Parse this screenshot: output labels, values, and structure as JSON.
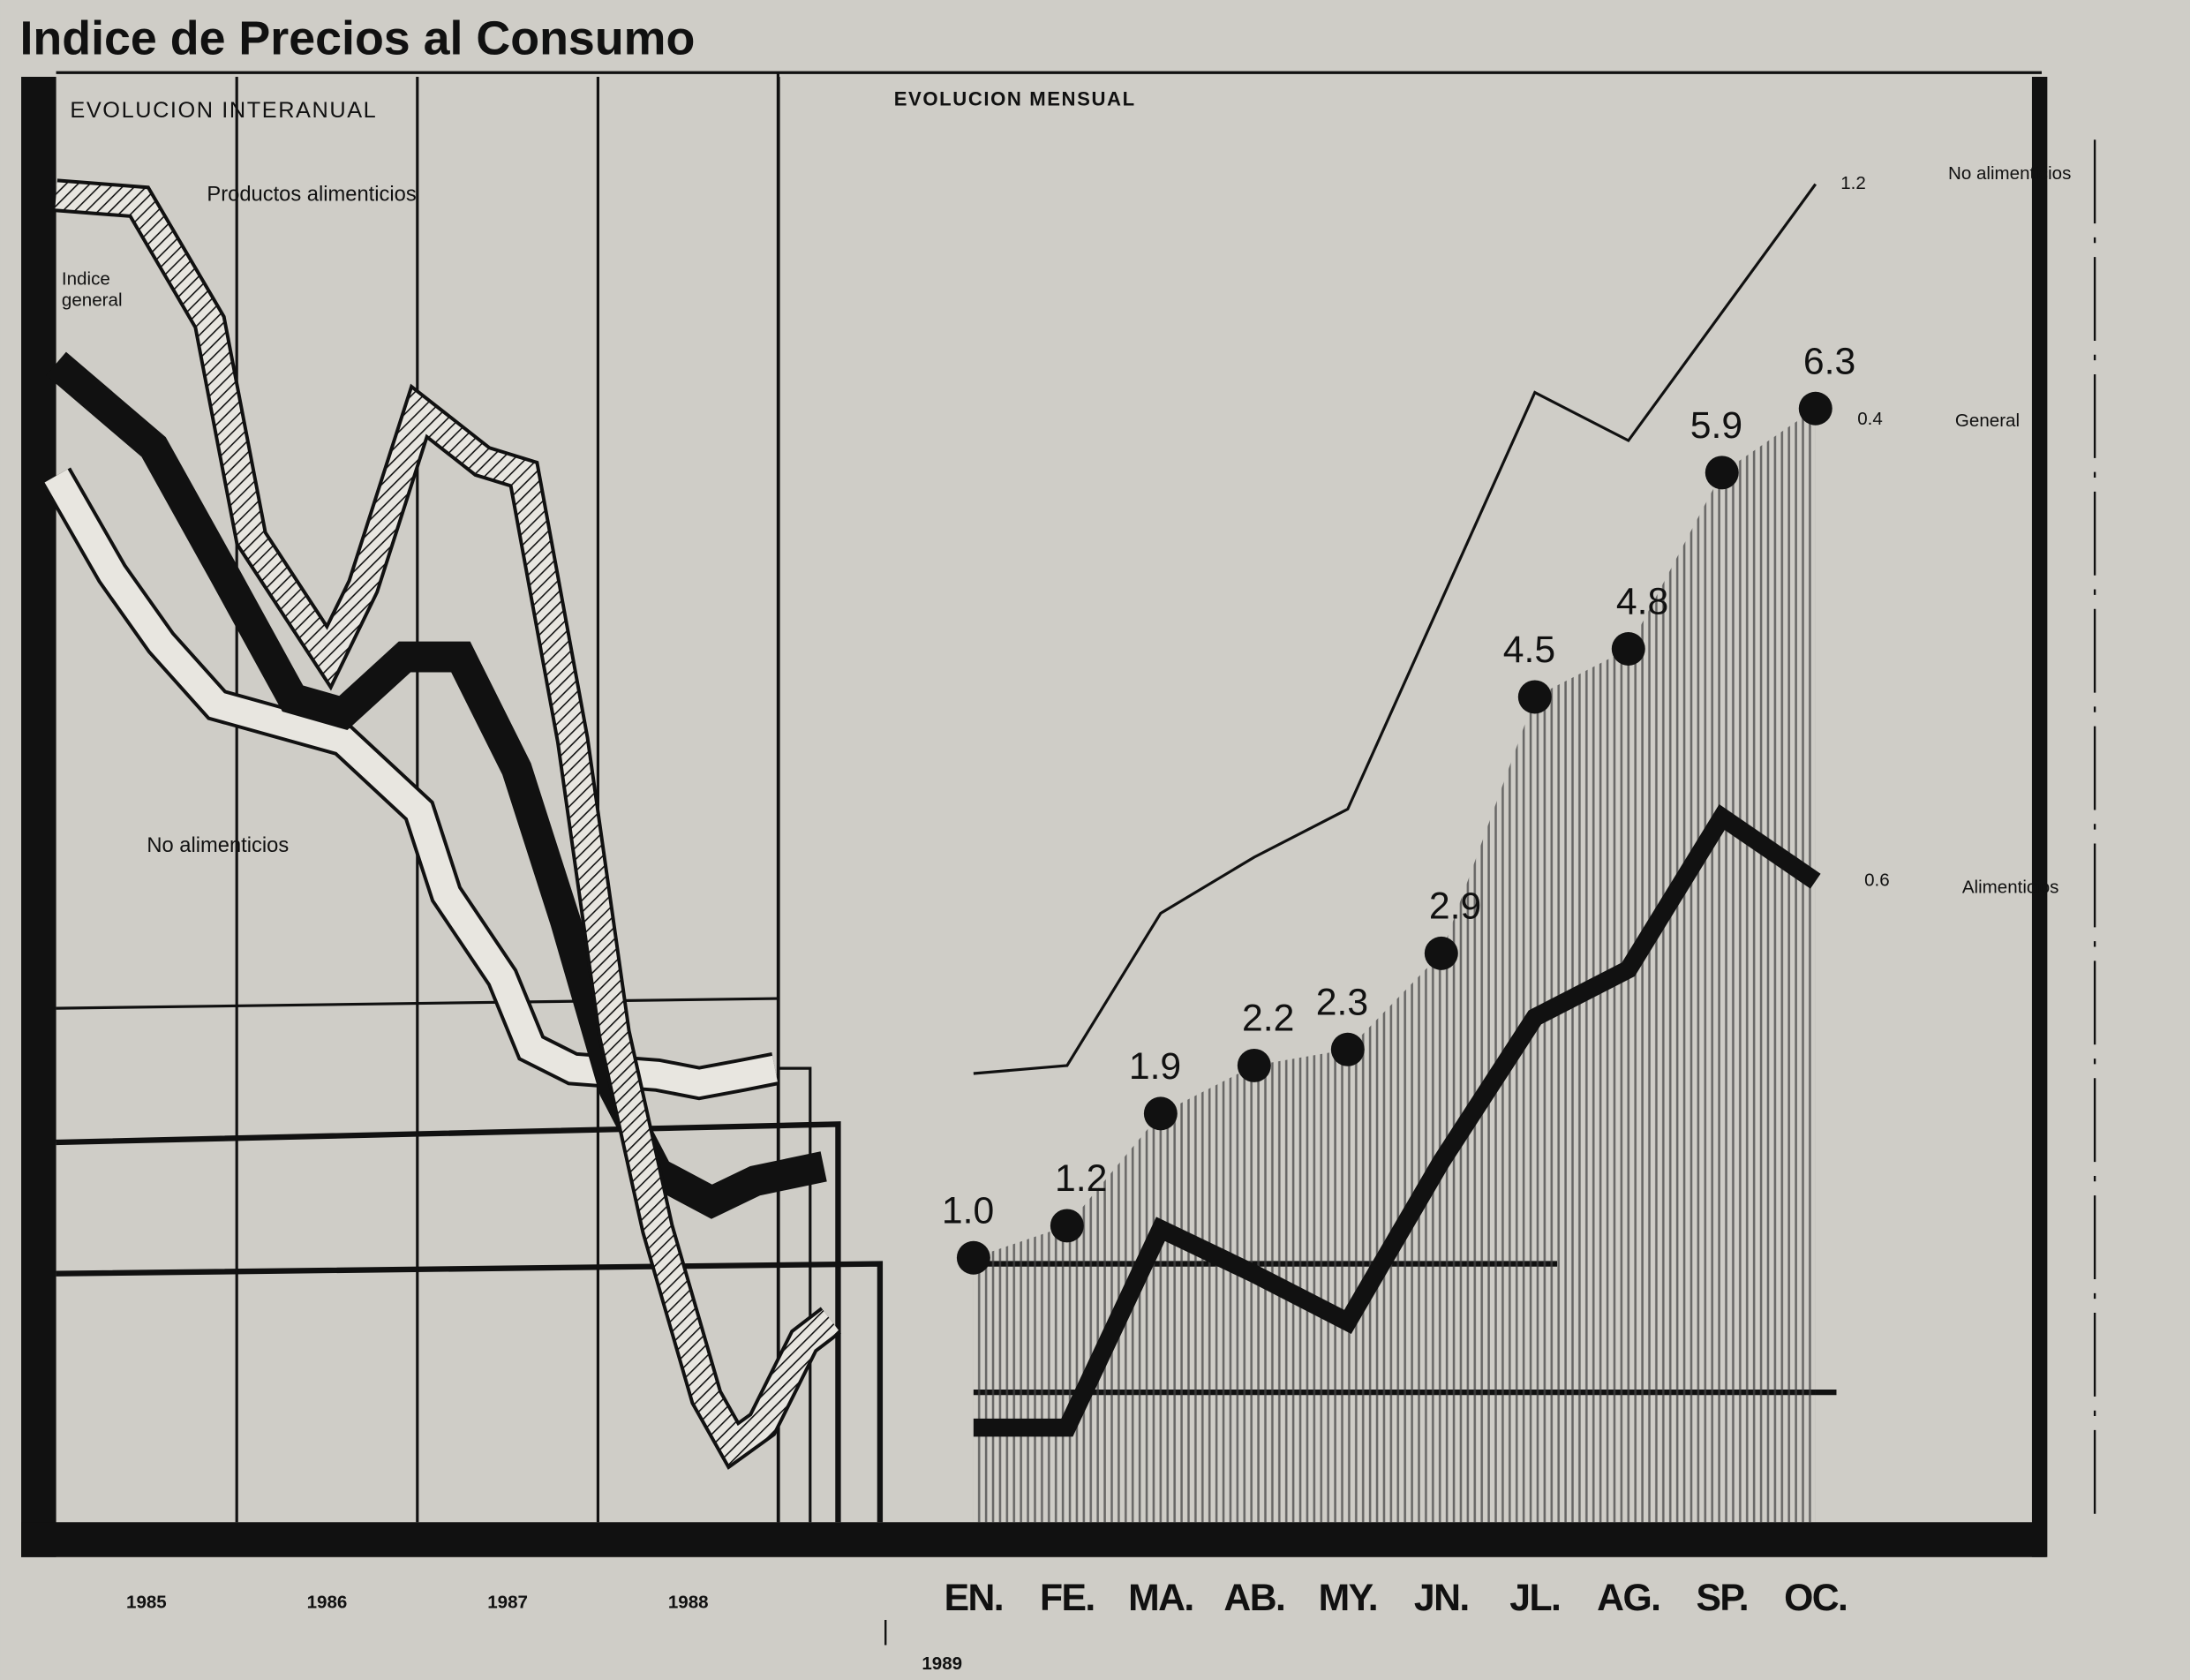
{
  "title": "Indice de Precios al Consumo",
  "chart_data": [
    {
      "type": "band-line",
      "subtitle": "EVOLUCION INTERANUAL",
      "xlim": [
        1985,
        1989.6
      ],
      "xticks": [
        {
          "value": 1985.5,
          "label": "1985"
        },
        {
          "value": 1986.5,
          "label": "1986"
        },
        {
          "value": 1987.5,
          "label": "1987"
        },
        {
          "value": 1988.5,
          "label": "1988"
        }
      ],
      "xgrid": [
        1986,
        1987,
        1988,
        1989
      ],
      "ylim": [
        -0.65,
        8.37
      ],
      "series": [
        {
          "name": "Productos alimenticios",
          "color": "#111111",
          "style": "hatched",
          "x": [
            1985.0,
            1985.46,
            1985.85,
            1986.08,
            1986.51,
            1986.7,
            1987.01,
            1987.36,
            1987.59,
            1987.86,
            1988.09,
            1988.33,
            1988.6,
            1988.75,
            1988.91,
            1989.14,
            1989.29
          ],
          "values": [
            7.63,
            7.59,
            6.84,
            5.49,
            4.75,
            5.19,
            6.28,
            5.97,
            5.89,
            4.23,
            2.4,
            1.18,
            0.13,
            -0.17,
            -0.04,
            0.48,
            0.61
          ]
        },
        {
          "name": "Indice general",
          "color": "#111111",
          "style": "solid",
          "x": [
            1985.0,
            1985.54,
            1985.93,
            1986.31,
            1986.59,
            1986.93,
            1987.24,
            1987.55,
            1987.82,
            1988.09,
            1988.33,
            1988.63,
            1988.87,
            1989.25
          ],
          "values": [
            6.58,
            6.06,
            5.27,
            4.49,
            4.4,
            4.75,
            4.75,
            4.05,
            3.1,
            2.05,
            1.53,
            1.35,
            1.48,
            1.57
          ]
        },
        {
          "name": "No alimenticios",
          "color": "#111111",
          "style": "open",
          "x": [
            1985.0,
            1985.31,
            1985.58,
            1985.89,
            1986.59,
            1987.01,
            1987.16,
            1987.47,
            1987.63,
            1987.86,
            1988.33,
            1988.56,
            1988.8,
            1988.98
          ],
          "values": [
            5.88,
            5.27,
            4.84,
            4.45,
            4.23,
            3.79,
            3.27,
            2.75,
            2.31,
            2.18,
            2.14,
            2.09,
            2.14,
            2.18
          ]
        }
      ]
    },
    {
      "type": "line",
      "subtitle": "EVOLUCION MENSUAL",
      "xlabel": "1989",
      "categories": [
        "EN.",
        "FE.",
        "MA.",
        "AB.",
        "MY.",
        "JN.",
        "JL.",
        "AG.",
        "SP.",
        "OC."
      ],
      "ylim": [
        -0.65,
        8.37
      ],
      "series": [
        {
          "name": "No alimenticios",
          "color": "#111111",
          "style": "thin",
          "end_label": "1.2",
          "values": [
            2.15,
            2.2,
            3.15,
            3.5,
            3.8,
            5.1,
            6.4,
            6.1,
            6.9,
            7.7
          ]
        },
        {
          "name": "General",
          "color": "#111111",
          "style": "dots",
          "end_label": "0.4",
          "values": [
            1.0,
            1.2,
            1.9,
            2.2,
            2.3,
            2.9,
            4.5,
            4.8,
            5.9,
            6.3
          ],
          "value_labels": [
            "1.0",
            "1.2",
            "1.9",
            "2.2",
            "2.3",
            "2.9",
            "4.5",
            "4.8",
            "5.9",
            "6.3"
          ]
        },
        {
          "name": "Alimenticios",
          "color": "#111111",
          "style": "thick",
          "end_label": "0.6",
          "values": [
            -0.06,
            -0.06,
            1.18,
            0.9,
            0.6,
            1.6,
            2.5,
            2.8,
            3.75,
            3.35
          ]
        }
      ]
    }
  ]
}
